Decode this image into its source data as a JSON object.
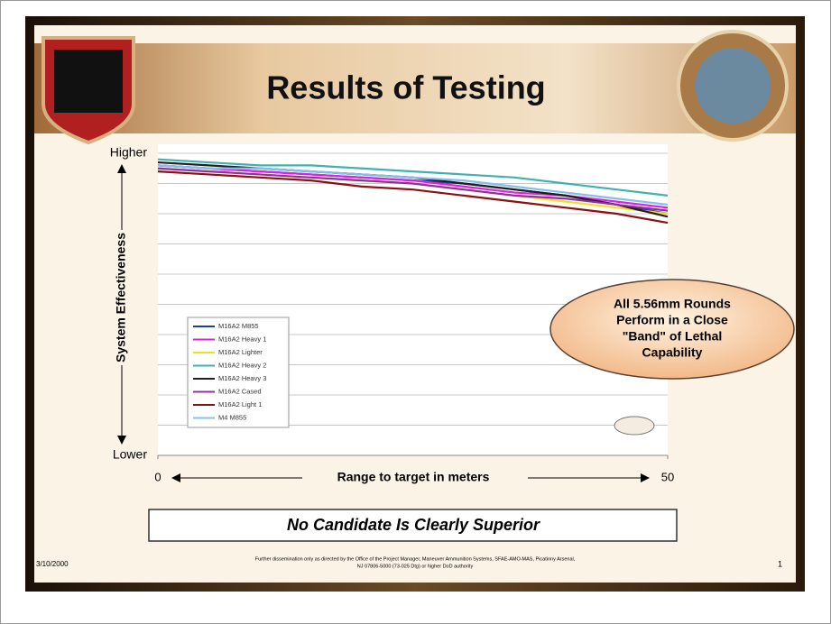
{
  "slide": {
    "title": "Results of Testing",
    "callout": [
      "All 5.56mm Rounds",
      "Perform in a Close",
      "\"Band\" of Lethal",
      "Capability"
    ],
    "conclusion": "No Candidate Is Clearly Superior",
    "date": "3/10/2000",
    "page": "1",
    "footer": [
      "Further dissemination only as directed by the Office of the Project Manager, Maneuver Ammunition Systems, SFAE-AMO-MAS, Picatinny Arsenal,",
      "NJ 07806-5000 (73-025 Dtg) or higher DoD authority"
    ]
  },
  "chart_data": {
    "type": "line",
    "ylabel": "System Effectiveness",
    "xlabel": "Range to target in meters",
    "x": [
      0,
      5,
      10,
      15,
      20,
      25,
      30,
      35,
      40,
      45,
      50
    ],
    "xlim": [
      0,
      50
    ],
    "xticks": [
      0,
      50
    ],
    "ylim": [
      0,
      1
    ],
    "yticks": [
      {
        "value": 0,
        "label": "Lower"
      },
      {
        "value": 1,
        "label": "Higher"
      }
    ],
    "grid": true,
    "series": [
      {
        "name": "M16A2 M855",
        "color": "#1f3fa0",
        "values": [
          0.96,
          0.95,
          0.94,
          0.93,
          0.92,
          0.91,
          0.9,
          0.88,
          0.86,
          0.83,
          0.8
        ]
      },
      {
        "name": "M16A2 Heavy 1",
        "color": "#e020e0",
        "values": [
          0.96,
          0.95,
          0.94,
          0.93,
          0.92,
          0.91,
          0.89,
          0.87,
          0.86,
          0.84,
          0.82
        ]
      },
      {
        "name": "M16A2 Lighter",
        "color": "#f0e020",
        "values": [
          0.95,
          0.94,
          0.93,
          0.92,
          0.91,
          0.9,
          0.88,
          0.86,
          0.84,
          0.82,
          0.8
        ]
      },
      {
        "name": "M16A2 Heavy 2",
        "color": "#40b0b0",
        "values": [
          0.98,
          0.97,
          0.96,
          0.96,
          0.95,
          0.94,
          0.93,
          0.92,
          0.9,
          0.88,
          0.86
        ]
      },
      {
        "name": "M16A2 Heavy 3",
        "color": "#202020",
        "values": [
          0.97,
          0.96,
          0.95,
          0.94,
          0.93,
          0.92,
          0.9,
          0.88,
          0.86,
          0.83,
          0.79
        ]
      },
      {
        "name": "M16A2 Cased",
        "color": "#9030a0",
        "values": [
          0.95,
          0.94,
          0.93,
          0.92,
          0.91,
          0.9,
          0.88,
          0.86,
          0.85,
          0.83,
          0.81
        ]
      },
      {
        "name": "M16A2 Light 1",
        "color": "#8b1010",
        "values": [
          0.94,
          0.93,
          0.92,
          0.91,
          0.89,
          0.88,
          0.86,
          0.84,
          0.82,
          0.8,
          0.77
        ]
      },
      {
        "name": "M4 M855",
        "color": "#80c0f0",
        "values": [
          0.96,
          0.95,
          0.95,
          0.94,
          0.93,
          0.92,
          0.91,
          0.89,
          0.87,
          0.85,
          0.83
        ]
      }
    ]
  }
}
